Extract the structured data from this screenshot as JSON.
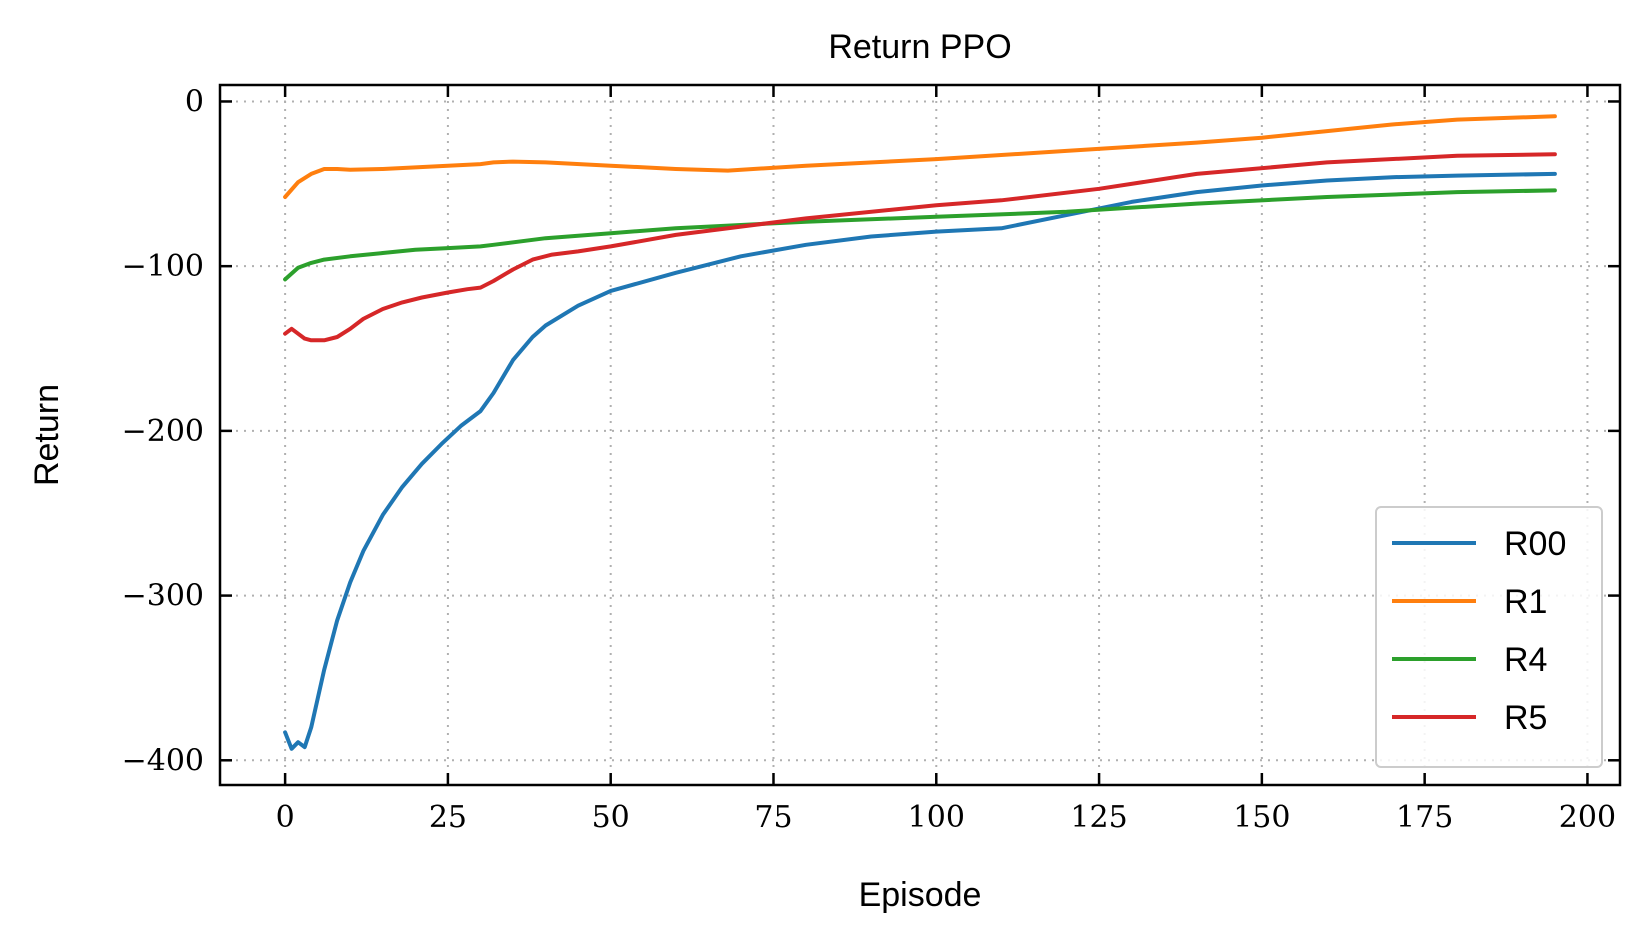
{
  "chart_data": {
    "type": "line",
    "title": "Return PPO",
    "xlabel": "Episode",
    "ylabel": "Return",
    "xlim": [
      -10,
      205
    ],
    "ylim": [
      -415,
      10
    ],
    "xticks": [
      0,
      25,
      50,
      75,
      100,
      125,
      150,
      175,
      200
    ],
    "yticks": [
      0,
      -100,
      -200,
      -300,
      -400
    ],
    "xtick_labels": [
      "0",
      "25",
      "50",
      "75",
      "100",
      "125",
      "150",
      "175",
      "200"
    ],
    "ytick_labels": [
      "0",
      "−100",
      "−200",
      "−300",
      "−400"
    ],
    "grid": true,
    "legend_position": "bottom-right",
    "series": [
      {
        "name": "R00",
        "color": "#1f77b4",
        "x": [
          0,
          1,
          2,
          3,
          4,
          6,
          8,
          10,
          12,
          15,
          18,
          21,
          24,
          27,
          30,
          32,
          35,
          38,
          40,
          45,
          50,
          60,
          70,
          80,
          90,
          100,
          110,
          120,
          130,
          140,
          150,
          160,
          170,
          180,
          195
        ],
        "y": [
          -383,
          -393,
          -389,
          -392,
          -380,
          -345,
          -315,
          -292,
          -273,
          -251,
          -234,
          -220,
          -208,
          -197,
          -188,
          -177,
          -157,
          -143,
          -136,
          -124,
          -115,
          -104,
          -94,
          -87,
          -82,
          -79,
          -77,
          -69,
          -61,
          -55,
          -51,
          -48,
          -46,
          -45,
          -44
        ]
      },
      {
        "name": "R1",
        "color": "#ff7f0e",
        "x": [
          0,
          2,
          4,
          6,
          8,
          10,
          15,
          20,
          25,
          30,
          32,
          35,
          40,
          50,
          60,
          68,
          80,
          100,
          120,
          140,
          150,
          160,
          170,
          180,
          195
        ],
        "y": [
          -58,
          -49,
          -44,
          -41,
          -41,
          -41.5,
          -41,
          -40,
          -39,
          -38,
          -37,
          -36.5,
          -37,
          -39,
          -41,
          -42,
          -39,
          -35,
          -30,
          -25,
          -22,
          -18,
          -14,
          -11,
          -9
        ]
      },
      {
        "name": "R4",
        "color": "#2ca02c",
        "x": [
          0,
          2,
          4,
          6,
          10,
          15,
          20,
          25,
          30,
          32,
          40,
          50,
          60,
          70,
          80,
          100,
          120,
          140,
          160,
          180,
          195
        ],
        "y": [
          -108,
          -101,
          -98,
          -96,
          -94,
          -92,
          -90,
          -89,
          -88,
          -87,
          -83,
          -80,
          -77,
          -75,
          -73,
          -70,
          -67,
          -62,
          -58,
          -55,
          -54
        ]
      },
      {
        "name": "R5",
        "color": "#d62728",
        "x": [
          0,
          1,
          2,
          3,
          4,
          5,
          6,
          8,
          10,
          12,
          15,
          18,
          21,
          25,
          28,
          30,
          32,
          35,
          38,
          41,
          45,
          50,
          60,
          70,
          80,
          100,
          110,
          125,
          140,
          160,
          180,
          195
        ],
        "y": [
          -141,
          -138,
          -141,
          -144,
          -145,
          -145,
          -145,
          -143,
          -138,
          -132,
          -126,
          -122,
          -119,
          -116,
          -114,
          -113,
          -109,
          -102,
          -96,
          -93,
          -91,
          -88,
          -81,
          -76,
          -71,
          -63,
          -60,
          -53,
          -44,
          -37,
          -33,
          -32
        ]
      }
    ]
  }
}
